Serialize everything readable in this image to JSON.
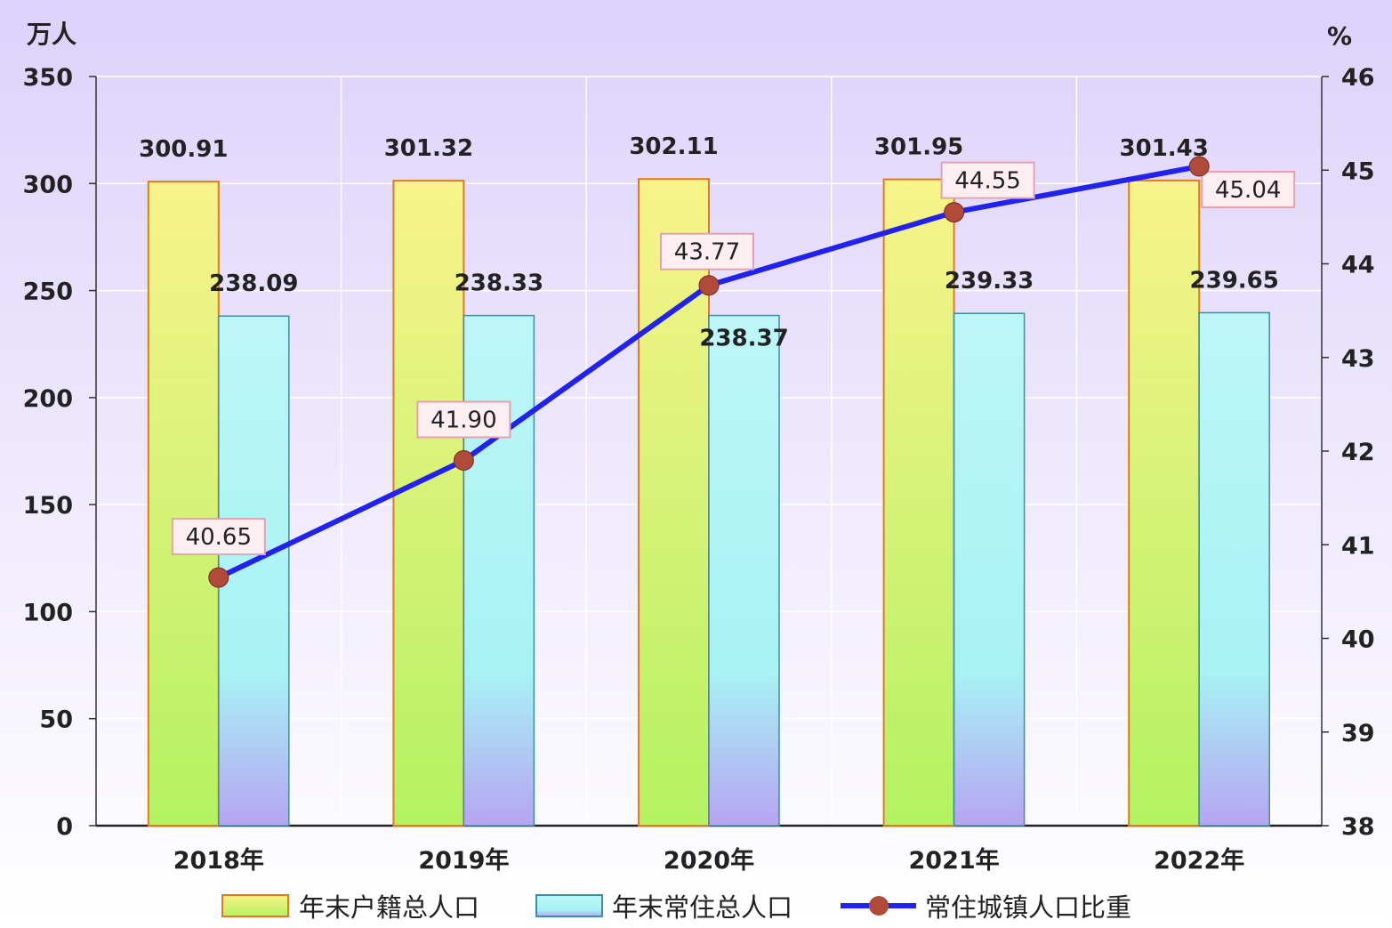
{
  "chart_data": {
    "type": "bar",
    "categories": [
      "2018年",
      "2019年",
      "2020年",
      "2021年",
      "2022年"
    ],
    "series": [
      {
        "name": "年末户籍总人口",
        "kind": "bar",
        "axis": "left",
        "values": [
          300.91,
          301.32,
          302.11,
          301.95,
          301.43
        ]
      },
      {
        "name": "年末常住总人口",
        "kind": "bar",
        "axis": "left",
        "values": [
          238.09,
          238.33,
          238.37,
          239.33,
          239.65
        ]
      },
      {
        "name": "常住城镇人口比重",
        "kind": "line",
        "axis": "right",
        "values": [
          40.65,
          41.9,
          43.77,
          44.55,
          45.04
        ]
      }
    ],
    "bar_value_labels": [
      [
        "300.91",
        "301.32",
        "302.11",
        "301.95",
        "301.43"
      ],
      [
        "238.09",
        "238.33",
        "238.37",
        "239.33",
        "239.65"
      ]
    ],
    "line_value_labels": [
      "40.65",
      "41.90",
      "43.77",
      "44.55",
      "45.04"
    ],
    "y_left": {
      "unit": "万人",
      "min": 0,
      "max": 350,
      "ticks": [
        "0",
        "50",
        "100",
        "150",
        "200",
        "250",
        "300",
        "350"
      ]
    },
    "y_right": {
      "unit": "%",
      "min": 38,
      "max": 46,
      "ticks": [
        "38",
        "39",
        "40",
        "41",
        "42",
        "43",
        "44",
        "45",
        "46"
      ]
    },
    "grid": true,
    "legend": {
      "position": "bottom"
    },
    "colors": {
      "bar1_top": "#f8f38a",
      "bar1_bottom": "#b4f262",
      "bar1_border": "#e07a20",
      "bar2_top": "#bdf6f8",
      "bar2_bottom": "#b6a4f2",
      "bar2_border": "#3a8fa8",
      "line": "#2222ee",
      "marker": "#b04a3a",
      "label_box_bg": "#fdeef2",
      "label_box_border": "#e8a0b0",
      "plot_bg_top": "#ddd2fb",
      "plot_bg_bottom": "#ffffff"
    }
  }
}
